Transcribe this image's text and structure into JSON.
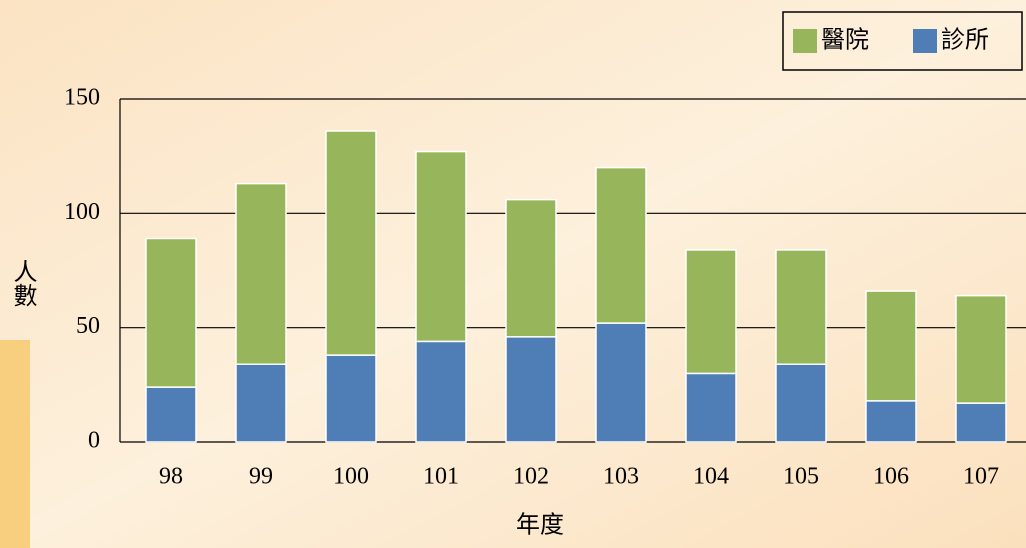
{
  "chart_data": {
    "type": "stacked-bar",
    "categories": [
      "98",
      "99",
      "100",
      "101",
      "102",
      "103",
      "104",
      "105",
      "106",
      "107"
    ],
    "series": [
      {
        "name": "診所",
        "color": "#4f7db5",
        "values": [
          24,
          34,
          38,
          44,
          46,
          52,
          30,
          34,
          18,
          17
        ]
      },
      {
        "name": "醫院",
        "color": "#97b55b",
        "values": [
          65,
          79,
          98,
          83,
          60,
          68,
          54,
          50,
          48,
          47
        ]
      }
    ],
    "ylim": [
      0,
      150
    ],
    "yticks": [
      0,
      50,
      100,
      150
    ],
    "grid": true,
    "x_label": "年度",
    "y_label": "人數",
    "legend": "top-right"
  }
}
